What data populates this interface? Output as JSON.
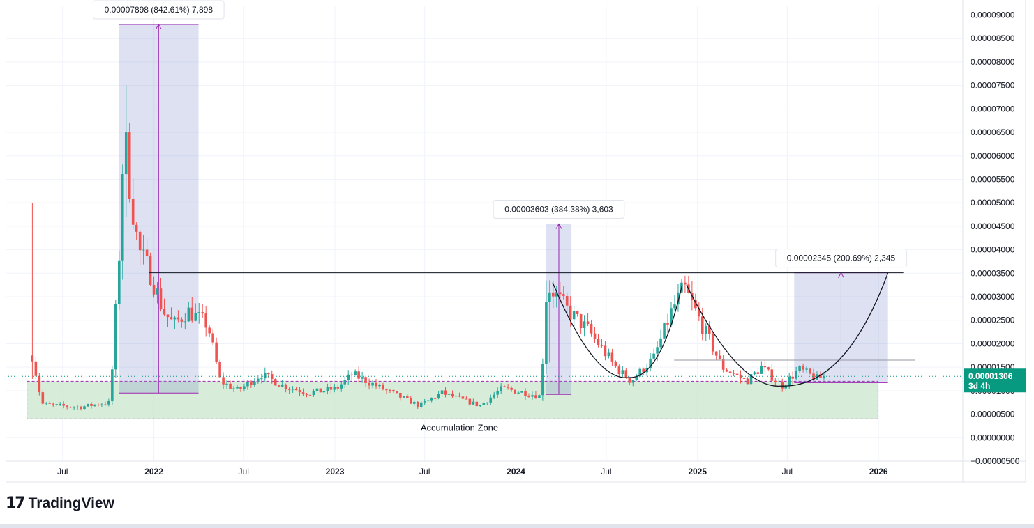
{
  "brand": {
    "logo_text": "TradingView",
    "logo_mark": "17"
  },
  "chart_data": {
    "type": "candlestick",
    "x_tick_labels": [
      {
        "label": "Jul",
        "date": "2021-07-01",
        "major": false
      },
      {
        "label": "2022",
        "date": "2022-01-01",
        "major": true
      },
      {
        "label": "Jul",
        "date": "2022-07-01",
        "major": false
      },
      {
        "label": "2023",
        "date": "2023-01-01",
        "major": true
      },
      {
        "label": "Jul",
        "date": "2023-07-01",
        "major": false
      },
      {
        "label": "2024",
        "date": "2024-01-01",
        "major": true
      },
      {
        "label": "Jul",
        "date": "2024-07-01",
        "major": false
      },
      {
        "label": "2025",
        "date": "2025-01-01",
        "major": true
      },
      {
        "label": "Jul",
        "date": "2025-07-01",
        "major": false
      },
      {
        "label": "2026",
        "date": "2026-01-01",
        "major": true
      }
    ],
    "y_tick_labels": [
      "0.00009000",
      "0.00008500",
      "0.00008000",
      "0.00007500",
      "0.00007000",
      "0.00006500",
      "0.00006000",
      "0.00005500",
      "0.00005000",
      "0.00004500",
      "0.00004000",
      "0.00003500",
      "0.00003000",
      "0.00002500",
      "0.00002000",
      "0.00001500",
      "0.00001000",
      "0.00000500",
      "0.00000000",
      "−0.00000500"
    ],
    "ylim": [
      -5e-06,
      9.2e-05
    ],
    "xlim": [
      "2021-03-08",
      "2026-06-20"
    ],
    "grid": true,
    "up_color": "#26a69a",
    "down_color": "#ef5350",
    "current_price": {
      "value": "0.00001306",
      "timer": "3d 4h",
      "price": 1.306e-05,
      "color": "#089981"
    },
    "series_anchor": [
      [
        "2021-05-01",
        1.75e-05
      ],
      [
        "2021-05-20",
        7.2e-06
      ],
      [
        "2021-06-20",
        6.8e-06
      ],
      [
        "2021-08-05",
        6.5e-06
      ],
      [
        "2021-09-15",
        7.2e-06
      ],
      [
        "2021-10-05",
        7.5e-06
      ],
      [
        "2021-10-15",
        2.5e-05
      ],
      [
        "2021-10-28",
        4.8e-05
      ],
      [
        "2021-11-01",
        6.7e-05
      ],
      [
        "2021-11-15",
        5.2e-05
      ],
      [
        "2021-12-01",
        4e-05
      ],
      [
        "2021-12-25",
        3.5e-05
      ],
      [
        "2022-01-20",
        2.7e-05
      ],
      [
        "2022-02-10",
        2.4e-05
      ],
      [
        "2022-03-10",
        2.7e-05
      ],
      [
        "2022-04-20",
        2.4e-05
      ],
      [
        "2022-05-15",
        1.2e-05
      ],
      [
        "2022-06-20",
        1e-05
      ],
      [
        "2022-08-05",
        1.35e-05
      ],
      [
        "2022-09-20",
        1.1e-05
      ],
      [
        "2022-11-10",
        9.5e-06
      ],
      [
        "2023-01-05",
        1.05e-05
      ],
      [
        "2023-02-05",
        1.35e-05
      ],
      [
        "2023-04-05",
        1.05e-05
      ],
      [
        "2023-06-20",
        6.8e-06
      ],
      [
        "2023-08-05",
        9.5e-06
      ],
      [
        "2023-10-20",
        6.8e-06
      ],
      [
        "2023-12-05",
        1.05e-05
      ],
      [
        "2024-02-20",
        8.8e-06
      ],
      [
        "2024-03-02",
        3e-05
      ],
      [
        "2024-03-10",
        3.2e-05
      ],
      [
        "2024-04-15",
        2.7e-05
      ],
      [
        "2024-05-25",
        2.3e-05
      ],
      [
        "2024-07-20",
        1.5e-05
      ],
      [
        "2024-08-20",
        1.2e-05
      ],
      [
        "2024-10-05",
        1.7e-05
      ],
      [
        "2024-11-10",
        2.7e-05
      ],
      [
        "2024-12-05",
        3.2e-05
      ],
      [
        "2025-01-10",
        2.4e-05
      ],
      [
        "2025-02-20",
        1.5e-05
      ],
      [
        "2025-04-10",
        1.2e-05
      ],
      [
        "2025-05-10",
        1.5e-05
      ],
      [
        "2025-06-20",
        1.1e-05
      ],
      [
        "2025-07-25",
        1.45e-05
      ],
      [
        "2025-09-01",
        1.25e-05
      ],
      [
        "2025-09-15",
        1.306e-05
      ]
    ],
    "spikes": [
      {
        "date": "2021-05-01",
        "high": 5e-05,
        "low": 1.25e-05
      },
      {
        "date": "2021-11-05",
        "high": 7.5e-05,
        "low": 4.7e-05
      },
      {
        "date": "2024-03-05",
        "high": 3.35e-05,
        "low": 1.6e-05
      }
    ],
    "annotations": {
      "range_1": {
        "start": "2021-10-22",
        "end": "2022-04-01",
        "low": 9.5e-06,
        "high": 8.8e-05,
        "label": "0.00007898 (842.61%) 7,898"
      },
      "range_2": {
        "start": "2024-03-02",
        "end": "2024-04-22",
        "low": 9.2e-06,
        "high": 4.55e-05,
        "label": "0.00003603 (384.38%) 3,603"
      },
      "range_3": {
        "start": "2025-07-15",
        "end": "2026-01-20",
        "low": 1.17e-05,
        "high": 3.51e-05,
        "label": "0.00002345 (200.69%) 2,345"
      },
      "resistance_line": {
        "start": "2021-12-22",
        "end": "2026-02-20",
        "price": 3.51e-05
      },
      "support_line": {
        "start": "2024-11-15",
        "end": "2026-03-15",
        "price": 1.65e-05
      },
      "zone": {
        "start": "2021-04-20",
        "end": "2025-12-31",
        "top": 1.2e-05,
        "bottom": 4e-06,
        "label": "Accumulation Zone"
      },
      "cup_1": {
        "start": "2024-03-15",
        "bottom_date": "2024-08-15",
        "bottom_price": 1.28e-05,
        "end": "2024-12-01",
        "end_price": 3.25e-05
      },
      "cup_2": {
        "start": "2024-12-10",
        "bottom_date": "2025-06-20",
        "bottom_price": 1.1e-05,
        "end": "2026-01-20",
        "end_price": 3.51e-05
      }
    }
  }
}
